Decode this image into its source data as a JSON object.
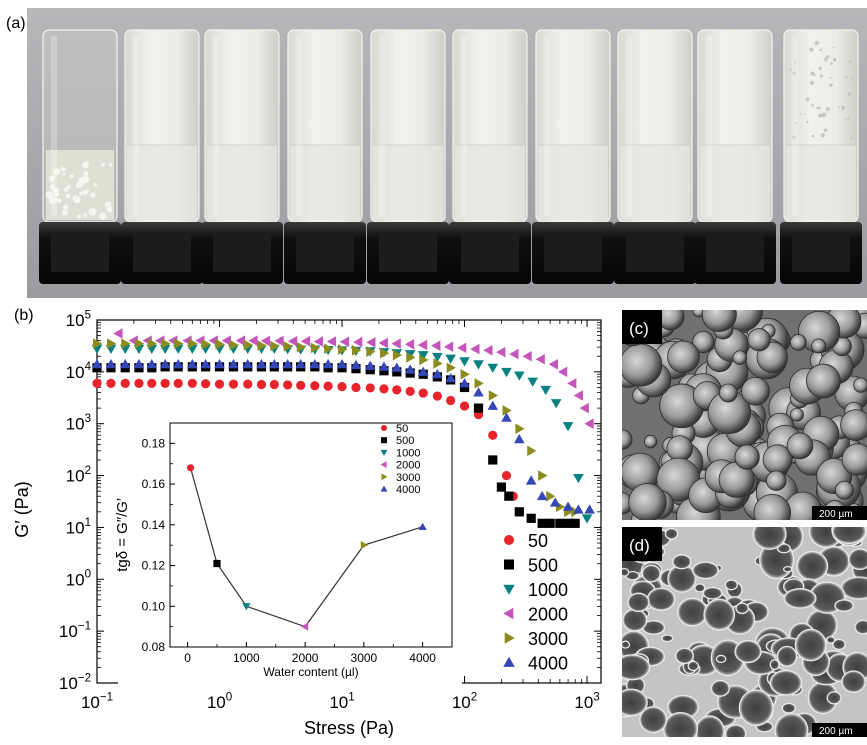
{
  "panels": {
    "a": "(a)",
    "b": "(b)",
    "c": "(c)",
    "d": "(d)"
  },
  "photo": {
    "vials": 10,
    "vial_gel_color": "#eceae6",
    "background": "#a9a7aa"
  },
  "sem": {
    "scale_c": "200 µm",
    "scale_d": "200 µm"
  },
  "colors": {
    "50": "#e8232b",
    "500": "#000000",
    "1000": "#0a8080",
    "2000": "#c455ba",
    "3000": "#8c8c1e",
    "4000": "#3547b6"
  },
  "chart_data": [
    {
      "type": "scatter",
      "title": "",
      "xlabel": "Stress (Pa)",
      "ylabel": "G′ (Pa)",
      "xscale": "log",
      "yscale": "log",
      "xlim": [
        0.1,
        1300
      ],
      "ylim": [
        0.01,
        100000
      ],
      "xticks": [
        "10−1",
        "100",
        "101",
        "102",
        "103"
      ],
      "yticks": [
        "10−2",
        "10−1",
        "100",
        "101",
        "102",
        "103",
        "104",
        "105"
      ],
      "legend": "bottom-right",
      "series": [
        {
          "name": "50",
          "marker": "circle",
          "x": [
            0.1,
            0.13,
            0.17,
            0.22,
            0.28,
            0.36,
            0.46,
            0.6,
            0.77,
            1,
            1.3,
            1.7,
            2.2,
            2.8,
            3.6,
            4.6,
            6,
            7.7,
            10,
            13,
            17,
            22,
            28,
            36,
            46,
            60,
            77,
            100,
            130,
            170,
            220,
            250,
            280
          ],
          "y": [
            6000,
            6000,
            6000,
            6000,
            6000,
            6000,
            6000,
            6000,
            5900,
            5800,
            5800,
            5800,
            5700,
            5700,
            5600,
            5500,
            5400,
            5300,
            5200,
            5000,
            4900,
            4700,
            4500,
            4200,
            3900,
            3400,
            2800,
            2200,
            1500,
            600,
            100,
            40,
            20
          ]
        },
        {
          "name": "500",
          "marker": "square",
          "x": [
            0.1,
            0.13,
            0.17,
            0.22,
            0.28,
            0.36,
            0.46,
            0.6,
            0.77,
            1,
            1.3,
            1.7,
            2.2,
            2.8,
            3.6,
            4.6,
            6,
            7.7,
            10,
            13,
            17,
            22,
            28,
            36,
            46,
            60,
            77,
            100,
            130,
            170,
            200,
            230,
            280,
            350,
            430,
            500,
            600,
            700,
            800
          ],
          "y": [
            12000,
            12000,
            12000,
            12000,
            12000,
            12500,
            12500,
            12500,
            12500,
            12500,
            12500,
            12500,
            12500,
            12500,
            12500,
            12500,
            12500,
            12000,
            12000,
            11500,
            11000,
            10500,
            10000,
            9500,
            9000,
            8000,
            7000,
            5000,
            2000,
            200,
            60,
            40,
            20,
            15,
            12,
            12,
            12,
            12,
            12
          ]
        },
        {
          "name": "1000",
          "marker": "tri-down",
          "x": [
            0.1,
            0.13,
            0.17,
            0.22,
            0.28,
            0.36,
            0.46,
            0.6,
            0.77,
            1,
            1.3,
            1.7,
            2.2,
            2.8,
            3.6,
            4.6,
            6,
            7.7,
            10,
            13,
            17,
            22,
            28,
            36,
            46,
            60,
            77,
            100,
            130,
            170,
            220,
            280,
            360,
            460,
            560,
            700,
            850,
            1000
          ],
          "y": [
            28000,
            28000,
            28000,
            28000,
            28000,
            28000,
            28000,
            28000,
            28000,
            28000,
            28000,
            28000,
            28000,
            28000,
            27500,
            27000,
            27000,
            26500,
            26000,
            25500,
            25000,
            24000,
            23000,
            22000,
            21000,
            19500,
            18000,
            16000,
            14000,
            12000,
            10000,
            8500,
            6500,
            4500,
            2500,
            900,
            90,
            15
          ]
        },
        {
          "name": "2000",
          "marker": "tri-left",
          "x": [
            0.15,
            0.2,
            0.26,
            0.33,
            0.42,
            0.55,
            0.7,
            0.9,
            1.15,
            1.5,
            1.9,
            2.4,
            3.1,
            4,
            5.1,
            6.5,
            8.3,
            10.6,
            13.6,
            17.4,
            22,
            28,
            36,
            46,
            59,
            75,
            96,
            123,
            157,
            200,
            256,
            328,
            420,
            537,
            640,
            760,
            860,
            960,
            1050
          ],
          "y": [
            55000,
            40000,
            40000,
            40000,
            40000,
            40000,
            40000,
            40000,
            40000,
            40000,
            40000,
            39500,
            39500,
            39000,
            39000,
            38500,
            38500,
            38000,
            37500,
            37000,
            36000,
            35000,
            34000,
            33000,
            32000,
            30500,
            29000,
            27500,
            26000,
            24000,
            22000,
            20000,
            17500,
            14000,
            10000,
            6000,
            3500,
            2000,
            1000
          ]
        },
        {
          "name": "3000",
          "marker": "tri-right",
          "x": [
            0.1,
            0.13,
            0.17,
            0.22,
            0.28,
            0.36,
            0.46,
            0.6,
            0.77,
            1,
            1.3,
            1.7,
            2.2,
            2.8,
            3.6,
            4.6,
            6,
            7.7,
            10,
            13,
            17,
            22,
            28,
            36,
            46,
            60,
            77,
            100,
            130,
            170,
            220,
            280,
            350,
            430,
            500,
            600,
            700,
            800
          ],
          "y": [
            35000,
            35000,
            35000,
            35000,
            35000,
            35000,
            35000,
            35000,
            34000,
            34000,
            33000,
            33000,
            32000,
            31500,
            31000,
            30000,
            29000,
            28000,
            27000,
            26000,
            24500,
            23000,
            21000,
            19000,
            17000,
            14500,
            12000,
            9000,
            6000,
            3500,
            1800,
            800,
            300,
            100,
            40,
            25,
            20,
            20
          ]
        },
        {
          "name": "4000",
          "marker": "tri-up",
          "x": [
            0.1,
            0.13,
            0.17,
            0.22,
            0.28,
            0.36,
            0.46,
            0.6,
            0.77,
            1,
            1.3,
            1.7,
            2.2,
            2.8,
            3.6,
            4.6,
            6,
            7.7,
            10,
            13,
            17,
            22,
            28,
            36,
            46,
            60,
            77,
            100,
            130,
            170,
            220,
            280,
            350,
            430,
            550,
            700,
            850,
            1050
          ],
          "y": [
            14000,
            14000,
            14000,
            14000,
            14000,
            14000,
            14000,
            14000,
            14000,
            14000,
            14000,
            14000,
            14000,
            14000,
            14000,
            14000,
            14000,
            14000,
            14000,
            13500,
            13000,
            12500,
            12000,
            11000,
            10000,
            9000,
            7500,
            6000,
            4000,
            2200,
            1300,
            500,
            80,
            40,
            30,
            25,
            22,
            22
          ]
        }
      ]
    },
    {
      "type": "line",
      "title": "",
      "xlabel": "Water content (µl)",
      "ylabel": "tgδ = G″/G′",
      "xlim": [
        -300,
        4500
      ],
      "ylim": [
        0.08,
        0.19
      ],
      "xticks": [
        "0",
        "1000",
        "2000",
        "3000",
        "4000"
      ],
      "yticks": [
        "0.08",
        "0.10",
        "0.12",
        "0.14",
        "0.16",
        "0.18"
      ],
      "legend": "top-right",
      "points": [
        {
          "name": "50",
          "x": 50,
          "y": 0.168,
          "marker": "circle"
        },
        {
          "name": "500",
          "x": 500,
          "y": 0.121,
          "marker": "square"
        },
        {
          "name": "1000",
          "x": 1000,
          "y": 0.1,
          "marker": "tri-down"
        },
        {
          "name": "2000",
          "x": 2000,
          "y": 0.09,
          "marker": "tri-left"
        },
        {
          "name": "3000",
          "x": 3000,
          "y": 0.13,
          "marker": "tri-right"
        },
        {
          "name": "4000",
          "x": 4000,
          "y": 0.139,
          "marker": "tri-up"
        }
      ]
    }
  ]
}
